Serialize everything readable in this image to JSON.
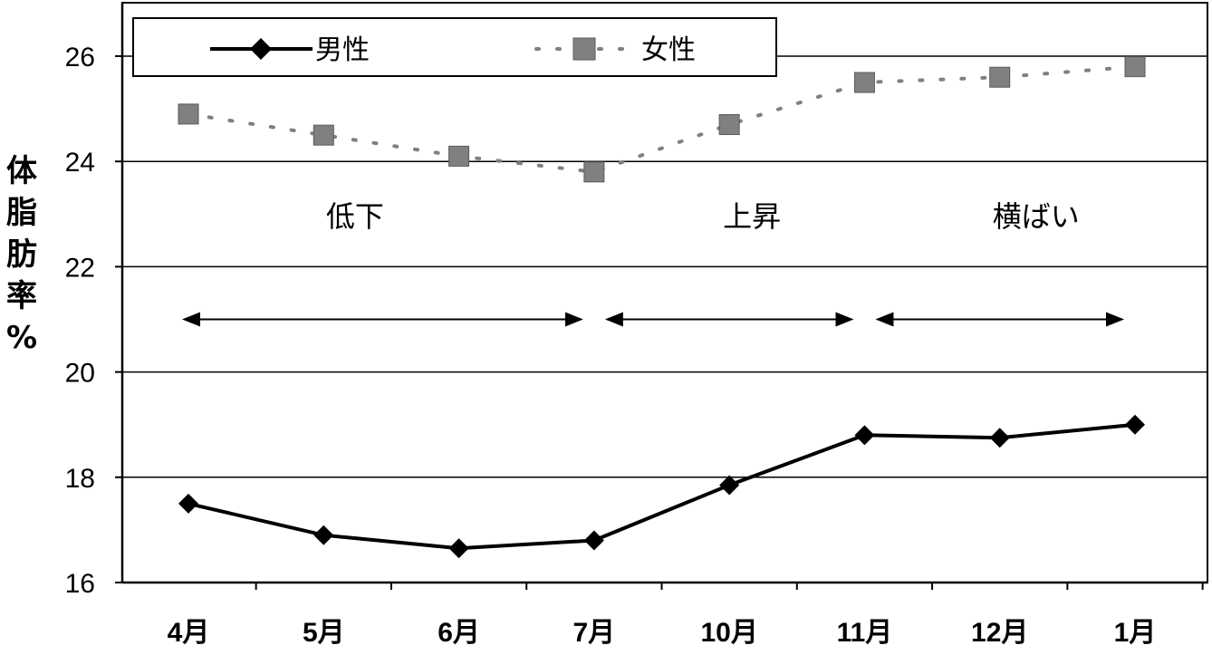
{
  "chart_data": {
    "type": "line",
    "title": "",
    "xlabel": "",
    "ylabel": "体脂肪率%",
    "categories": [
      "4月",
      "5月",
      "6月",
      "7月",
      "10月",
      "11月",
      "12月",
      "1月"
    ],
    "ylim": [
      16,
      26
    ],
    "yticks": [
      16,
      18,
      20,
      22,
      24,
      26
    ],
    "grid": "horizontal",
    "legend_position": "top-left",
    "series": [
      {
        "name": "男性",
        "style": "solid",
        "marker": "diamond",
        "color": "#000000",
        "values": [
          17.5,
          16.9,
          16.65,
          16.8,
          17.85,
          18.8,
          18.75,
          19.0
        ]
      },
      {
        "name": "女性",
        "style": "dotted",
        "marker": "square",
        "color": "#808080",
        "values": [
          24.9,
          24.5,
          24.1,
          23.8,
          24.7,
          25.5,
          25.6,
          25.8
        ]
      }
    ],
    "annotations": [
      {
        "text": "低下",
        "from_category": 0,
        "to_category": 3
      },
      {
        "text": "上昇",
        "from_category": 3,
        "to_category": 5
      },
      {
        "text": "横ばい",
        "from_category": 5,
        "to_category": 7
      }
    ],
    "annotation_arrow_y": 21
  }
}
